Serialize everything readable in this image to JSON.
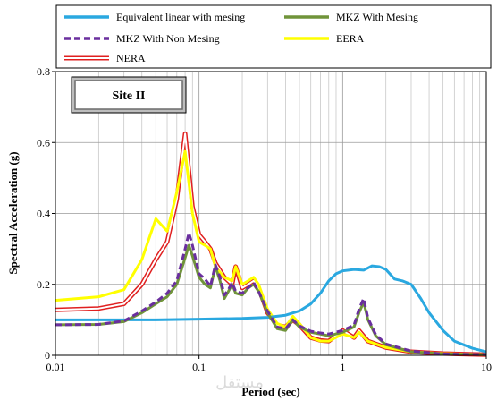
{
  "chart_data": {
    "type": "line",
    "xlabel": "Period (sec)",
    "ylabel": "Spectral Acceleration (g)",
    "xscale": "log",
    "xlim": [
      0.01,
      10
    ],
    "ylim": [
      0,
      0.8
    ],
    "x_ticks": [
      "0.01",
      "0.1",
      "1",
      "10"
    ],
    "y_ticks": [
      "0",
      "0.2",
      "0.4",
      "0.6",
      "0.8"
    ],
    "grid": "minor log gridlines on x, major gridlines on y",
    "legend_position": "top",
    "annotation": "Site II",
    "series": [
      {
        "name": "Equivalent linear with mesing",
        "color": "#2aa8e0",
        "style": "solid",
        "points": [
          [
            0.01,
            0.1
          ],
          [
            0.02,
            0.1
          ],
          [
            0.05,
            0.1
          ],
          [
            0.1,
            0.102
          ],
          [
            0.2,
            0.104
          ],
          [
            0.3,
            0.107
          ],
          [
            0.4,
            0.113
          ],
          [
            0.5,
            0.125
          ],
          [
            0.6,
            0.145
          ],
          [
            0.7,
            0.175
          ],
          [
            0.8,
            0.21
          ],
          [
            0.9,
            0.23
          ],
          [
            1.0,
            0.238
          ],
          [
            1.2,
            0.242
          ],
          [
            1.4,
            0.24
          ],
          [
            1.6,
            0.252
          ],
          [
            1.8,
            0.25
          ],
          [
            2.0,
            0.242
          ],
          [
            2.3,
            0.215
          ],
          [
            2.6,
            0.21
          ],
          [
            3.0,
            0.2
          ],
          [
            3.5,
            0.16
          ],
          [
            4.0,
            0.12
          ],
          [
            5.0,
            0.07
          ],
          [
            6.0,
            0.04
          ],
          [
            8.0,
            0.02
          ],
          [
            10.0,
            0.01
          ]
        ]
      },
      {
        "name": "MKZ With Mesing",
        "color": "#70943a",
        "style": "solid",
        "points": [
          [
            0.01,
            0.086
          ],
          [
            0.02,
            0.087
          ],
          [
            0.03,
            0.095
          ],
          [
            0.04,
            0.12
          ],
          [
            0.05,
            0.145
          ],
          [
            0.06,
            0.165
          ],
          [
            0.07,
            0.2
          ],
          [
            0.08,
            0.275
          ],
          [
            0.085,
            0.31
          ],
          [
            0.09,
            0.28
          ],
          [
            0.1,
            0.22
          ],
          [
            0.11,
            0.2
          ],
          [
            0.12,
            0.19
          ],
          [
            0.13,
            0.25
          ],
          [
            0.14,
            0.21
          ],
          [
            0.15,
            0.16
          ],
          [
            0.16,
            0.18
          ],
          [
            0.17,
            0.2
          ],
          [
            0.18,
            0.175
          ],
          [
            0.2,
            0.17
          ],
          [
            0.22,
            0.19
          ],
          [
            0.24,
            0.2
          ],
          [
            0.26,
            0.18
          ],
          [
            0.3,
            0.12
          ],
          [
            0.35,
            0.075
          ],
          [
            0.4,
            0.07
          ],
          [
            0.45,
            0.1
          ],
          [
            0.5,
            0.08
          ],
          [
            0.6,
            0.065
          ],
          [
            0.7,
            0.06
          ],
          [
            0.8,
            0.055
          ],
          [
            1.0,
            0.065
          ],
          [
            1.2,
            0.08
          ],
          [
            1.3,
            0.12
          ],
          [
            1.4,
            0.15
          ],
          [
            1.5,
            0.1
          ],
          [
            1.7,
            0.055
          ],
          [
            2.0,
            0.03
          ],
          [
            3.0,
            0.01
          ],
          [
            5.0,
            0.004
          ],
          [
            10.0,
            0.002
          ]
        ]
      },
      {
        "name": "MKZ With Non Mesing",
        "color": "#6a2f9e",
        "style": "dashed",
        "points": [
          [
            0.01,
            0.086
          ],
          [
            0.02,
            0.087
          ],
          [
            0.03,
            0.097
          ],
          [
            0.04,
            0.125
          ],
          [
            0.05,
            0.15
          ],
          [
            0.06,
            0.175
          ],
          [
            0.07,
            0.21
          ],
          [
            0.08,
            0.3
          ],
          [
            0.085,
            0.345
          ],
          [
            0.09,
            0.31
          ],
          [
            0.1,
            0.23
          ],
          [
            0.11,
            0.215
          ],
          [
            0.12,
            0.195
          ],
          [
            0.13,
            0.255
          ],
          [
            0.14,
            0.22
          ],
          [
            0.15,
            0.17
          ],
          [
            0.16,
            0.185
          ],
          [
            0.17,
            0.205
          ],
          [
            0.18,
            0.18
          ],
          [
            0.2,
            0.175
          ],
          [
            0.22,
            0.19
          ],
          [
            0.24,
            0.205
          ],
          [
            0.26,
            0.18
          ],
          [
            0.3,
            0.125
          ],
          [
            0.35,
            0.08
          ],
          [
            0.4,
            0.075
          ],
          [
            0.45,
            0.1
          ],
          [
            0.5,
            0.083
          ],
          [
            0.6,
            0.068
          ],
          [
            0.7,
            0.063
          ],
          [
            0.8,
            0.06
          ],
          [
            1.0,
            0.07
          ],
          [
            1.2,
            0.085
          ],
          [
            1.3,
            0.13
          ],
          [
            1.4,
            0.16
          ],
          [
            1.5,
            0.105
          ],
          [
            1.7,
            0.058
          ],
          [
            2.0,
            0.032
          ],
          [
            3.0,
            0.012
          ],
          [
            5.0,
            0.004
          ],
          [
            10.0,
            0.002
          ]
        ]
      },
      {
        "name": "EERA",
        "color": "#ffff00",
        "style": "solid",
        "points": [
          [
            0.01,
            0.155
          ],
          [
            0.02,
            0.165
          ],
          [
            0.03,
            0.185
          ],
          [
            0.04,
            0.27
          ],
          [
            0.05,
            0.385
          ],
          [
            0.06,
            0.35
          ],
          [
            0.07,
            0.46
          ],
          [
            0.08,
            0.575
          ],
          [
            0.09,
            0.4
          ],
          [
            0.1,
            0.32
          ],
          [
            0.11,
            0.31
          ],
          [
            0.12,
            0.3
          ],
          [
            0.13,
            0.25
          ],
          [
            0.15,
            0.22
          ],
          [
            0.17,
            0.21
          ],
          [
            0.18,
            0.25
          ],
          [
            0.2,
            0.2
          ],
          [
            0.22,
            0.21
          ],
          [
            0.24,
            0.22
          ],
          [
            0.26,
            0.2
          ],
          [
            0.3,
            0.13
          ],
          [
            0.35,
            0.09
          ],
          [
            0.4,
            0.08
          ],
          [
            0.45,
            0.11
          ],
          [
            0.5,
            0.09
          ],
          [
            0.6,
            0.05
          ],
          [
            0.7,
            0.04
          ],
          [
            0.8,
            0.04
          ],
          [
            1.0,
            0.06
          ],
          [
            1.2,
            0.05
          ],
          [
            1.3,
            0.065
          ],
          [
            1.5,
            0.04
          ],
          [
            2.0,
            0.022
          ],
          [
            3.0,
            0.01
          ],
          [
            5.0,
            0.005
          ],
          [
            10.0,
            0.002
          ]
        ]
      },
      {
        "name": "NERA",
        "color": "#e02020",
        "style": "double",
        "points": [
          [
            0.01,
            0.128
          ],
          [
            0.02,
            0.132
          ],
          [
            0.03,
            0.145
          ],
          [
            0.04,
            0.2
          ],
          [
            0.05,
            0.27
          ],
          [
            0.06,
            0.32
          ],
          [
            0.07,
            0.44
          ],
          [
            0.08,
            0.625
          ],
          [
            0.09,
            0.42
          ],
          [
            0.1,
            0.34
          ],
          [
            0.11,
            0.32
          ],
          [
            0.12,
            0.3
          ],
          [
            0.13,
            0.26
          ],
          [
            0.15,
            0.22
          ],
          [
            0.17,
            0.2
          ],
          [
            0.18,
            0.25
          ],
          [
            0.2,
            0.19
          ],
          [
            0.22,
            0.2
          ],
          [
            0.24,
            0.21
          ],
          [
            0.26,
            0.19
          ],
          [
            0.3,
            0.12
          ],
          [
            0.35,
            0.085
          ],
          [
            0.4,
            0.08
          ],
          [
            0.45,
            0.1
          ],
          [
            0.5,
            0.085
          ],
          [
            0.6,
            0.05
          ],
          [
            0.7,
            0.042
          ],
          [
            0.8,
            0.04
          ],
          [
            1.0,
            0.07
          ],
          [
            1.2,
            0.05
          ],
          [
            1.3,
            0.07
          ],
          [
            1.5,
            0.04
          ],
          [
            2.0,
            0.022
          ],
          [
            3.0,
            0.01
          ],
          [
            5.0,
            0.005
          ],
          [
            10.0,
            0.002
          ]
        ]
      }
    ]
  }
}
